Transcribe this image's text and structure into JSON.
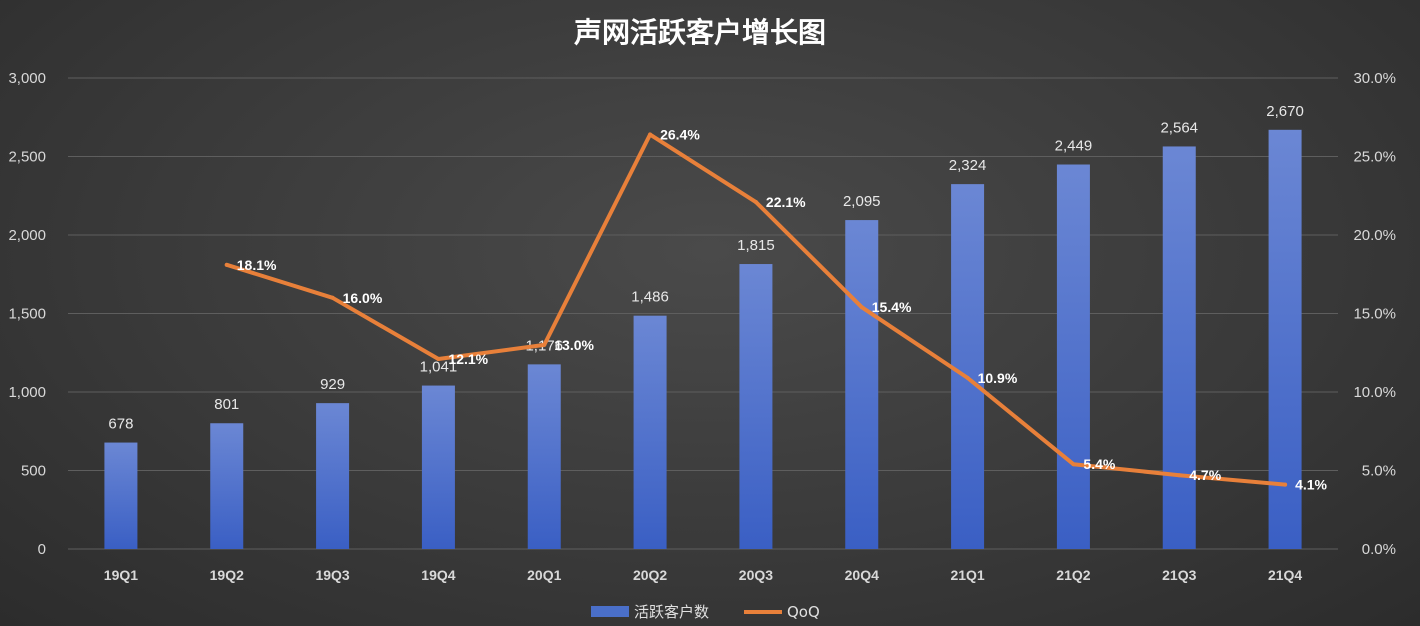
{
  "chart_data": {
    "type": "bar",
    "title": "声网活跃客户增长图",
    "categories": [
      "19Q1",
      "19Q2",
      "19Q3",
      "19Q4",
      "20Q1",
      "20Q2",
      "20Q3",
      "20Q4",
      "21Q1",
      "21Q2",
      "21Q3",
      "21Q4"
    ],
    "series": [
      {
        "name": "活跃客户数",
        "type": "bar",
        "axis": "left",
        "color": "#4a6fc9",
        "values": [
          678,
          801,
          929,
          1041,
          1176,
          1486,
          1815,
          2095,
          2324,
          2449,
          2564,
          2670
        ],
        "labels": [
          "678",
          "801",
          "929",
          "1,041",
          "1,176",
          "1,486",
          "1,815",
          "2,095",
          "2,324",
          "2,449",
          "2,564",
          "2,670"
        ]
      },
      {
        "name": "QoQ",
        "type": "line",
        "axis": "right",
        "color": "#e8803a",
        "values": [
          null,
          18.1,
          16.0,
          12.1,
          13.0,
          26.4,
          22.1,
          15.4,
          10.9,
          5.4,
          4.7,
          4.1
        ],
        "labels": [
          "",
          "18.1%",
          "16.0%",
          "12.1%",
          "13.0%",
          "26.4%",
          "22.1%",
          "15.4%",
          "10.9%",
          "5.4%",
          "4.7%",
          "4.1%"
        ]
      }
    ],
    "ylim": [
      0,
      3000
    ],
    "y2lim": [
      0,
      30
    ],
    "yticks": [
      "0",
      "500",
      "1,000",
      "1,500",
      "2,000",
      "2,500",
      "3,000"
    ],
    "y2ticks": [
      "0.0%",
      "5.0%",
      "10.0%",
      "15.0%",
      "20.0%",
      "25.0%",
      "30.0%"
    ],
    "grid": true,
    "legend_position": "bottom"
  }
}
